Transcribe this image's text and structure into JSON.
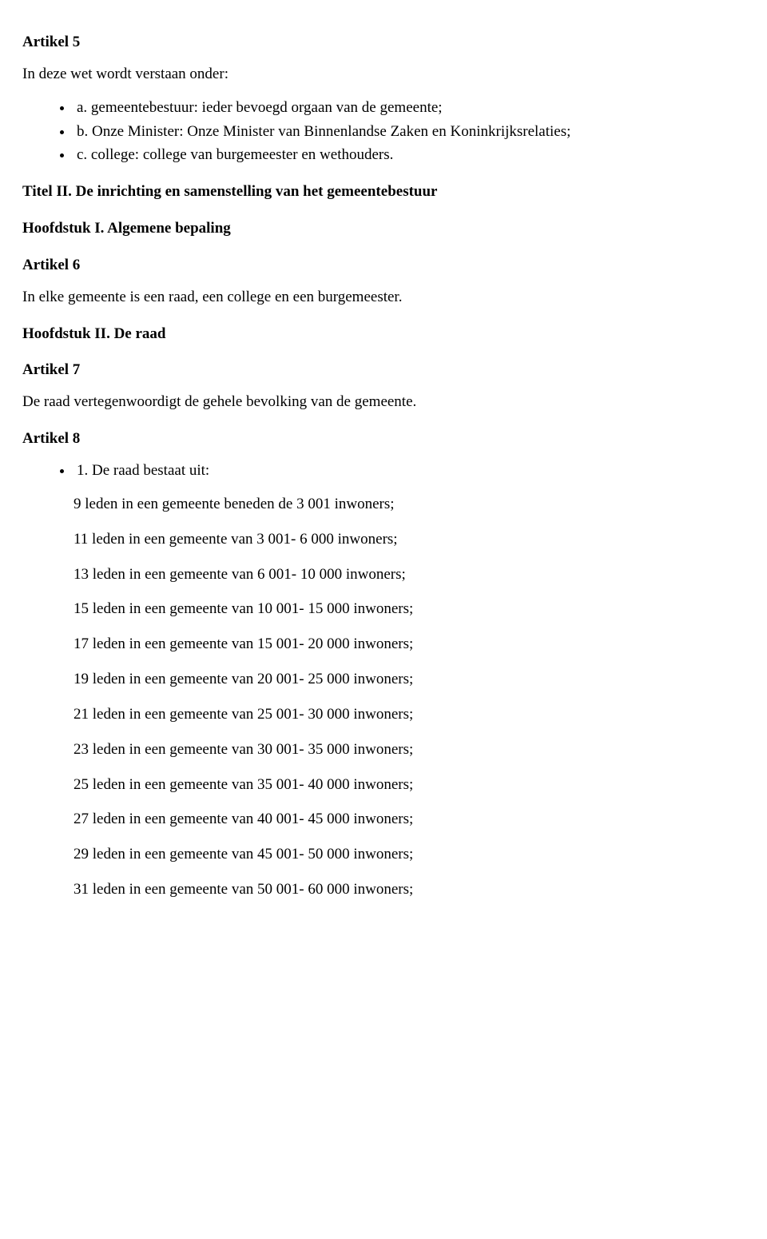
{
  "article5": {
    "heading": "Artikel 5",
    "intro": "In deze wet wordt verstaan onder:",
    "defs": [
      "a. gemeentebestuur: ieder bevoegd orgaan van de gemeente;",
      "b. Onze Minister: Onze Minister van Binnenlandse Zaken en Koninkrijksrelaties;",
      "c. college: college van burgemeester en wethouders."
    ]
  },
  "title2": "Titel II. De inrichting en samenstelling van het gemeentebestuur",
  "chapter1": "Hoofdstuk I. Algemene bepaling",
  "article6": {
    "heading": "Artikel 6",
    "body": "In elke gemeente is een raad, een college en een burgemeester."
  },
  "chapter2": "Hoofdstuk II. De raad",
  "article7": {
    "heading": "Artikel 7",
    "body": "De raad vertegenwoordigt de gehele bevolking van de gemeente."
  },
  "article8": {
    "heading": "Artikel 8",
    "bullet": "1. De raad bestaat uit:",
    "rows": [
      "9 leden in een gemeente beneden de 3 001 inwoners;",
      "11 leden in een gemeente van 3 001- 6 000 inwoners;",
      "13 leden in een gemeente van 6 001- 10 000 inwoners;",
      "15 leden in een gemeente van 10 001- 15 000 inwoners;",
      "17 leden in een gemeente van 15 001- 20 000 inwoners;",
      "19 leden in een gemeente van 20 001- 25 000 inwoners;",
      "21 leden in een gemeente van 25 001- 30 000 inwoners;",
      "23 leden in een gemeente van 30 001- 35 000 inwoners;",
      "25 leden in een gemeente van 35 001- 40 000 inwoners;",
      "27 leden in een gemeente van 40 001- 45 000 inwoners;",
      "29 leden in een gemeente van 45 001- 50 000 inwoners;",
      "31 leden in een gemeente van 50 001- 60 000 inwoners;"
    ]
  }
}
